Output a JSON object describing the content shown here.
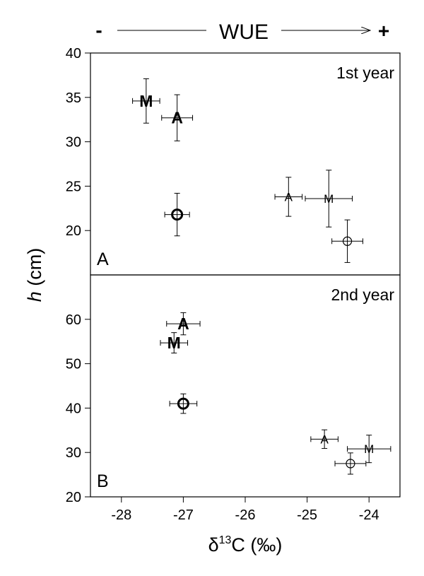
{
  "header": {
    "minus": "-",
    "label": "WUE",
    "plus": "+"
  },
  "axes": {
    "ylabel_var": "h",
    "ylabel_unit": " (cm)",
    "xlabel_delta": "δ",
    "xlabel_sup": "13",
    "xlabel_rest": "C (‰)"
  },
  "chart_data": [
    {
      "type": "scatter",
      "panel_letter": "A",
      "title": "1st year",
      "xlim": [
        -28.5,
        -23.5
      ],
      "ylim": [
        15,
        40
      ],
      "xticks": [
        -28,
        -27,
        -26,
        -25,
        -24
      ],
      "yticks": [
        20,
        25,
        30,
        35,
        40
      ],
      "points": [
        {
          "marker": "M",
          "bold": true,
          "x": -27.6,
          "y": 34.6,
          "xerr": 0.22,
          "yerr": 2.5
        },
        {
          "marker": "A",
          "bold": true,
          "x": -27.1,
          "y": 32.7,
          "xerr": 0.25,
          "yerr": 2.6
        },
        {
          "marker": "O",
          "bold": true,
          "x": -27.1,
          "y": 21.8,
          "xerr": 0.2,
          "yerr": 2.4
        },
        {
          "marker": "A",
          "bold": false,
          "x": -25.3,
          "y": 23.8,
          "xerr": 0.22,
          "yerr": 2.2
        },
        {
          "marker": "M",
          "bold": false,
          "x": -24.65,
          "y": 23.6,
          "xerr": 0.38,
          "yerr": 3.2
        },
        {
          "marker": "O",
          "bold": false,
          "x": -24.35,
          "y": 18.8,
          "xerr": 0.25,
          "yerr": 2.4
        }
      ]
    },
    {
      "type": "scatter",
      "panel_letter": "B",
      "title": "2nd year",
      "xlim": [
        -28.5,
        -23.5
      ],
      "ylim": [
        20,
        70
      ],
      "xticks": [
        -28,
        -27,
        -26,
        -25,
        -24
      ],
      "yticks": [
        20,
        30,
        40,
        50,
        60
      ],
      "points": [
        {
          "marker": "A",
          "bold": true,
          "x": -27.0,
          "y": 59.0,
          "xerr": 0.27,
          "yerr": 2.5
        },
        {
          "marker": "M",
          "bold": true,
          "x": -27.15,
          "y": 54.7,
          "xerr": 0.22,
          "yerr": 2.3
        },
        {
          "marker": "O",
          "bold": true,
          "x": -27.0,
          "y": 41.0,
          "xerr": 0.22,
          "yerr": 2.2
        },
        {
          "marker": "A",
          "bold": false,
          "x": -24.72,
          "y": 33.0,
          "xerr": 0.22,
          "yerr": 2.1
        },
        {
          "marker": "M",
          "bold": false,
          "x": -24.0,
          "y": 30.8,
          "xerr": 0.35,
          "yerr": 3.1
        },
        {
          "marker": "O",
          "bold": false,
          "x": -24.3,
          "y": 27.5,
          "xerr": 0.25,
          "yerr": 2.4
        }
      ]
    }
  ]
}
